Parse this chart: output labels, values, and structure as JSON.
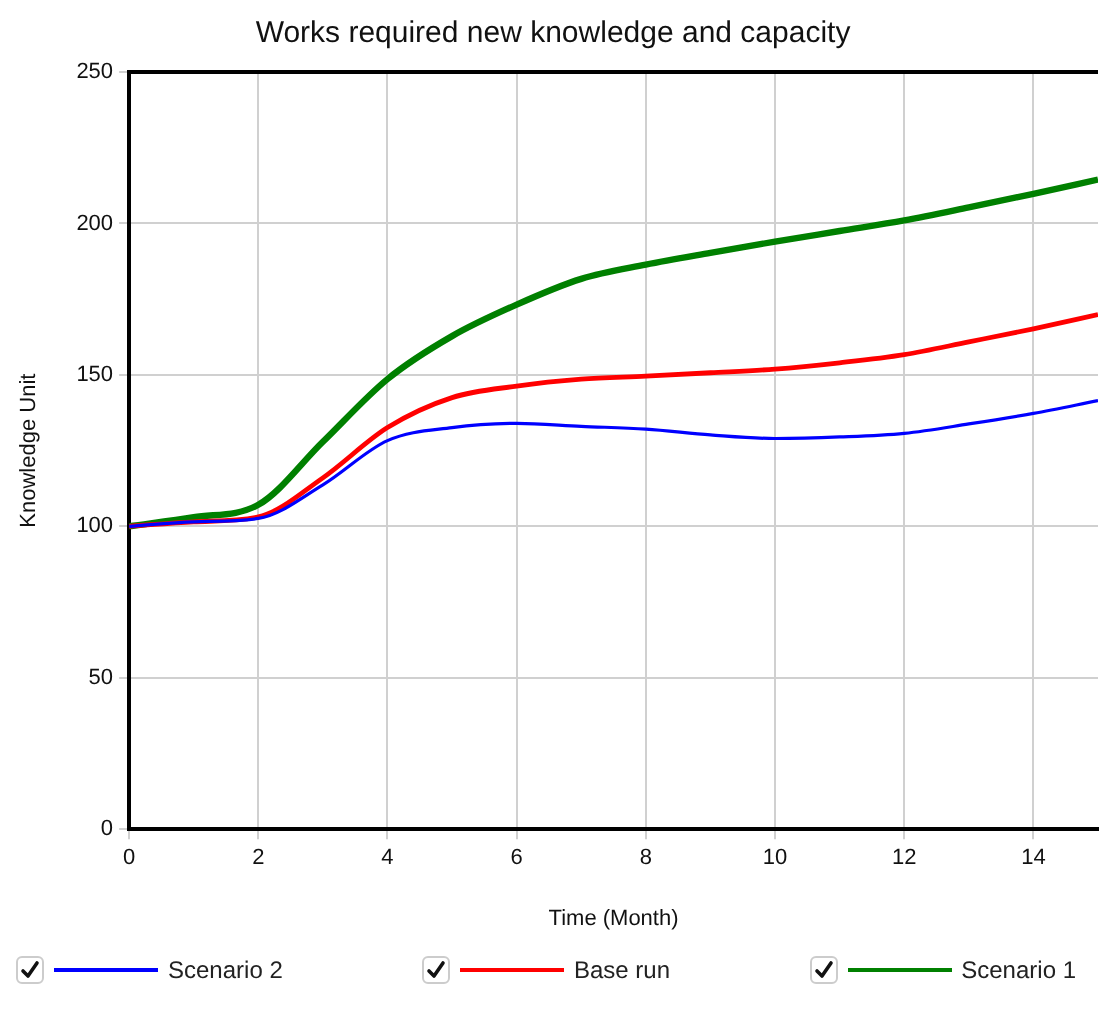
{
  "chart_data": {
    "type": "line",
    "title": "Works required new knowledge and capacity",
    "xlabel": "Time (Month)",
    "ylabel": "Knowledge Unit",
    "x": [
      0,
      1,
      2,
      3,
      4,
      5,
      6,
      7,
      8,
      9,
      10,
      11,
      12,
      13,
      14,
      15
    ],
    "xlim": [
      0,
      15
    ],
    "xticks": [
      0,
      2,
      4,
      6,
      8,
      10,
      12,
      14
    ],
    "ylim": [
      0,
      250
    ],
    "yticks": [
      0,
      50,
      100,
      150,
      200,
      250
    ],
    "grid": true,
    "legend": "bottom",
    "marker": "none",
    "line_style": "solid",
    "series": [
      {
        "name": "Scenario 2",
        "color": "#0000ff",
        "values": [
          100,
          101.5,
          102.6,
          113.7,
          128.3,
          132.6,
          134,
          133,
          132.1,
          130.2,
          129,
          129.5,
          130.7,
          133.8,
          137.3,
          141.5
        ]
      },
      {
        "name": "Base run",
        "color": "#ff0000",
        "values": [
          100,
          101.5,
          103.1,
          116,
          132.6,
          142.5,
          146.3,
          148.6,
          149.6,
          150.7,
          151.9,
          154,
          156.7,
          160.9,
          165.2,
          169.9
        ]
      },
      {
        "name": "Scenario 1",
        "color": "#008000",
        "values": [
          100,
          103,
          107.1,
          127.9,
          148.6,
          162.8,
          173.2,
          181.7,
          186.4,
          190.3,
          194,
          197.5,
          201,
          205.3,
          209.8,
          214.5
        ]
      }
    ]
  }
}
